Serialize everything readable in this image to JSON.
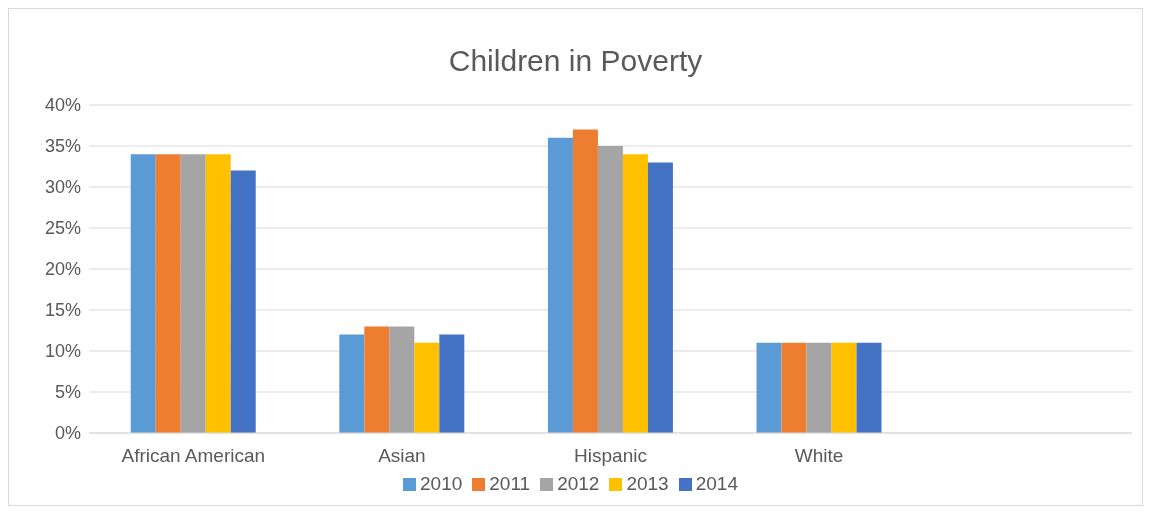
{
  "chart_data": {
    "type": "bar",
    "title": "Children in Poverty",
    "categories": [
      "African American",
      "Asian",
      "Hispanic",
      "White",
      null
    ],
    "series": [
      {
        "name": "2010",
        "color": "#5b9bd5",
        "values": [
          34,
          12,
          36,
          11,
          null
        ]
      },
      {
        "name": "2011",
        "color": "#ed7d31",
        "values": [
          34,
          13,
          37,
          11,
          null
        ]
      },
      {
        "name": "2012",
        "color": "#a5a5a5",
        "values": [
          34,
          13,
          35,
          11,
          null
        ]
      },
      {
        "name": "2013",
        "color": "#ffc000",
        "values": [
          34,
          11,
          34,
          11,
          null
        ]
      },
      {
        "name": "2014",
        "color": "#4472c4",
        "values": [
          32,
          12,
          33,
          11,
          null
        ]
      }
    ],
    "ylim": [
      0,
      40
    ],
    "yticks": [
      {
        "value": 0,
        "label": "0%"
      },
      {
        "value": 5,
        "label": "5%"
      },
      {
        "value": 10,
        "label": "10%"
      },
      {
        "value": 15,
        "label": "15%"
      },
      {
        "value": 20,
        "label": "20%"
      },
      {
        "value": 25,
        "label": "25%"
      },
      {
        "value": 30,
        "label": "30%"
      },
      {
        "value": 35,
        "label": "35%"
      },
      {
        "value": 40,
        "label": "40%"
      }
    ],
    "grid": "y",
    "legend": "bottom"
  }
}
